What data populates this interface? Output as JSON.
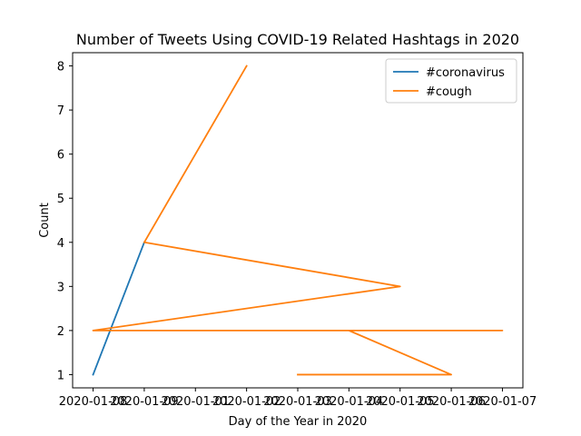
{
  "chart_data": {
    "type": "line",
    "title": "Number of Tweets Using COVID-19 Related Hashtags in 2020",
    "xlabel": "Day of the Year in 2020",
    "ylabel": "Count",
    "x_tick_labels": [
      "2020-01-08",
      "2020-01-09",
      "2020-01-01",
      "2020-01-02",
      "2020-01-03",
      "2020-01-04",
      "2020-01-05",
      "2020-01-06",
      "2020-01-07"
    ],
    "xlim": [
      -0.4,
      8.4
    ],
    "ylim": [
      0.7,
      8.3
    ],
    "y_ticks": [
      1,
      2,
      3,
      4,
      5,
      6,
      7,
      8
    ],
    "grid": false,
    "legend_position": "top-right",
    "series": [
      {
        "name": "#coronavirus",
        "color": "#1f77b4",
        "points": [
          {
            "x": "2020-01-08",
            "y": 1
          },
          {
            "x": "2020-01-09",
            "y": 4
          }
        ]
      },
      {
        "name": "#cough",
        "color": "#ff7f0e",
        "points": [
          {
            "x": "2020-01-02",
            "y": 8
          },
          {
            "x": "2020-01-09",
            "y": 4
          },
          {
            "x": "2020-01-05",
            "y": 3
          },
          {
            "x": "2020-01-08",
            "y": 2
          },
          {
            "x": "2020-01-07",
            "y": 2
          },
          {
            "x": "2020-01-04",
            "y": 2
          },
          {
            "x": "2020-01-06",
            "y": 1
          },
          {
            "x": "2020-01-03",
            "y": 1
          }
        ]
      }
    ]
  }
}
